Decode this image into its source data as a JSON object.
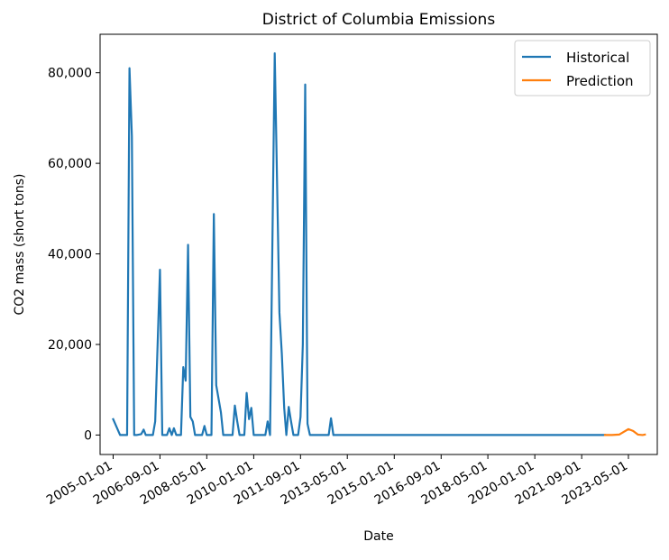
{
  "chart_data": {
    "type": "line",
    "title": "District of Columbia Emissions",
    "xlabel": "Date",
    "ylabel": "CO2 mass (short tons)",
    "x_axis_type": "date",
    "xlim": [
      "2004-07-15",
      "2024-05-10"
    ],
    "ylim": [
      -4300,
      88500
    ],
    "grid": false,
    "legend_position": "top-right",
    "x_tick_labels": [
      "2005-01-01",
      "2006-09-01",
      "2008-05-01",
      "2010-01-01",
      "2011-09-01",
      "2013-05-01",
      "2015-01-01",
      "2016-09-01",
      "2018-05-01",
      "2020-01-01",
      "2021-09-01",
      "2023-05-01"
    ],
    "y_ticks": [
      0,
      20000,
      40000,
      60000,
      80000
    ],
    "y_tick_labels": [
      "0",
      "20,000",
      "40,000",
      "60,000",
      "80,000"
    ],
    "series": [
      {
        "name": "Historical",
        "color": "#1f77b4",
        "points": [
          [
            "2005-01-01",
            3500
          ],
          [
            "2005-04-01",
            0
          ],
          [
            "2005-07-01",
            0
          ],
          [
            "2005-08-01",
            81000
          ],
          [
            "2005-09-01",
            66000
          ],
          [
            "2005-10-01",
            0
          ],
          [
            "2005-11-01",
            0
          ],
          [
            "2006-01-01",
            200
          ],
          [
            "2006-02-01",
            1200
          ],
          [
            "2006-03-01",
            0
          ],
          [
            "2006-06-01",
            0
          ],
          [
            "2006-07-01",
            3000
          ],
          [
            "2006-09-01",
            36500
          ],
          [
            "2006-10-01",
            0
          ],
          [
            "2006-12-01",
            0
          ],
          [
            "2007-01-01",
            1500
          ],
          [
            "2007-02-01",
            0
          ],
          [
            "2007-03-01",
            1500
          ],
          [
            "2007-04-01",
            0
          ],
          [
            "2007-06-01",
            0
          ],
          [
            "2007-07-01",
            15000
          ],
          [
            "2007-08-01",
            12000
          ],
          [
            "2007-09-01",
            42000
          ],
          [
            "2007-10-01",
            4000
          ],
          [
            "2007-11-01",
            3000
          ],
          [
            "2007-12-01",
            0
          ],
          [
            "2008-03-01",
            0
          ],
          [
            "2008-04-01",
            2000
          ],
          [
            "2008-05-01",
            0
          ],
          [
            "2008-07-01",
            0
          ],
          [
            "2008-08-01",
            48800
          ],
          [
            "2008-09-01",
            11000
          ],
          [
            "2008-11-01",
            5000
          ],
          [
            "2008-12-01",
            0
          ],
          [
            "2009-04-01",
            0
          ],
          [
            "2009-05-01",
            6500
          ],
          [
            "2009-06-01",
            3000
          ],
          [
            "2009-07-01",
            0
          ],
          [
            "2009-09-01",
            0
          ],
          [
            "2009-10-01",
            9300
          ],
          [
            "2009-11-01",
            3500
          ],
          [
            "2009-12-01",
            6000
          ],
          [
            "2010-01-01",
            0
          ],
          [
            "2010-06-01",
            0
          ],
          [
            "2010-07-01",
            3000
          ],
          [
            "2010-08-01",
            0
          ],
          [
            "2010-10-01",
            84300
          ],
          [
            "2010-12-01",
            27000
          ],
          [
            "2011-01-01",
            18000
          ],
          [
            "2011-02-01",
            6000
          ],
          [
            "2011-03-01",
            0
          ],
          [
            "2011-04-01",
            6200
          ],
          [
            "2011-05-01",
            3000
          ],
          [
            "2011-06-01",
            0
          ],
          [
            "2011-08-01",
            0
          ],
          [
            "2011-09-01",
            4000
          ],
          [
            "2011-10-01",
            20000
          ],
          [
            "2011-11-01",
            77400
          ],
          [
            "2011-12-01",
            2500
          ],
          [
            "2012-01-01",
            0
          ],
          [
            "2012-09-01",
            0
          ],
          [
            "2012-10-01",
            3700
          ],
          [
            "2012-11-01",
            0
          ],
          [
            "2013-06-01",
            0
          ],
          [
            "2016-01-01",
            0
          ],
          [
            "2019-01-01",
            0
          ],
          [
            "2022-07-01",
            0
          ]
        ]
      },
      {
        "name": "Prediction",
        "color": "#ff7f0e",
        "points": [
          [
            "2022-07-01",
            0
          ],
          [
            "2022-10-01",
            0
          ],
          [
            "2023-01-01",
            100
          ],
          [
            "2023-03-01",
            700
          ],
          [
            "2023-05-01",
            1300
          ],
          [
            "2023-07-01",
            900
          ],
          [
            "2023-09-01",
            100
          ],
          [
            "2023-11-01",
            0
          ],
          [
            "2023-12-01",
            100
          ]
        ]
      }
    ]
  }
}
